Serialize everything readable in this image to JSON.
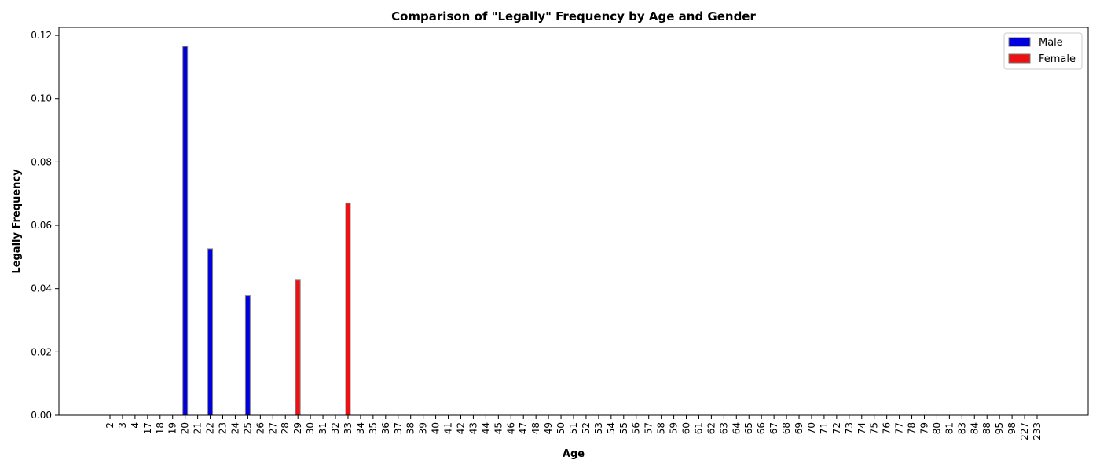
{
  "chart_data": {
    "type": "bar",
    "title": "Comparison of \"Legally\" Frequency by Age and Gender",
    "xlabel": "Age",
    "ylabel": "Legally Frequency",
    "ylim": [
      0,
      0.1225
    ],
    "yticks": [
      0.0,
      0.02,
      0.04,
      0.06,
      0.08,
      0.1,
      0.12
    ],
    "ytick_labels": [
      "0.00",
      "0.02",
      "0.04",
      "0.06",
      "0.08",
      "0.10",
      "0.12"
    ],
    "grid": false,
    "legend_position": "top-right",
    "categories": [
      "2",
      "3",
      "4",
      "17",
      "18",
      "19",
      "20",
      "21",
      "22",
      "23",
      "24",
      "25",
      "26",
      "27",
      "28",
      "29",
      "30",
      "31",
      "32",
      "33",
      "34",
      "35",
      "36",
      "37",
      "38",
      "39",
      "40",
      "41",
      "42",
      "43",
      "44",
      "45",
      "46",
      "47",
      "48",
      "49",
      "50",
      "51",
      "52",
      "53",
      "54",
      "55",
      "56",
      "57",
      "58",
      "59",
      "60",
      "61",
      "62",
      "63",
      "64",
      "65",
      "66",
      "67",
      "68",
      "69",
      "70",
      "71",
      "72",
      "73",
      "74",
      "75",
      "76",
      "77",
      "78",
      "79",
      "80",
      "81",
      "83",
      "84",
      "88",
      "95",
      "98",
      "227",
      "233"
    ],
    "series": [
      {
        "name": "Male",
        "color": "#0000dd",
        "values": {
          "20": 0.1165,
          "22": 0.0526,
          "25": 0.0378
        }
      },
      {
        "name": "Female",
        "color": "#ee1111",
        "values": {
          "29": 0.0427,
          "33": 0.067
        }
      }
    ]
  }
}
